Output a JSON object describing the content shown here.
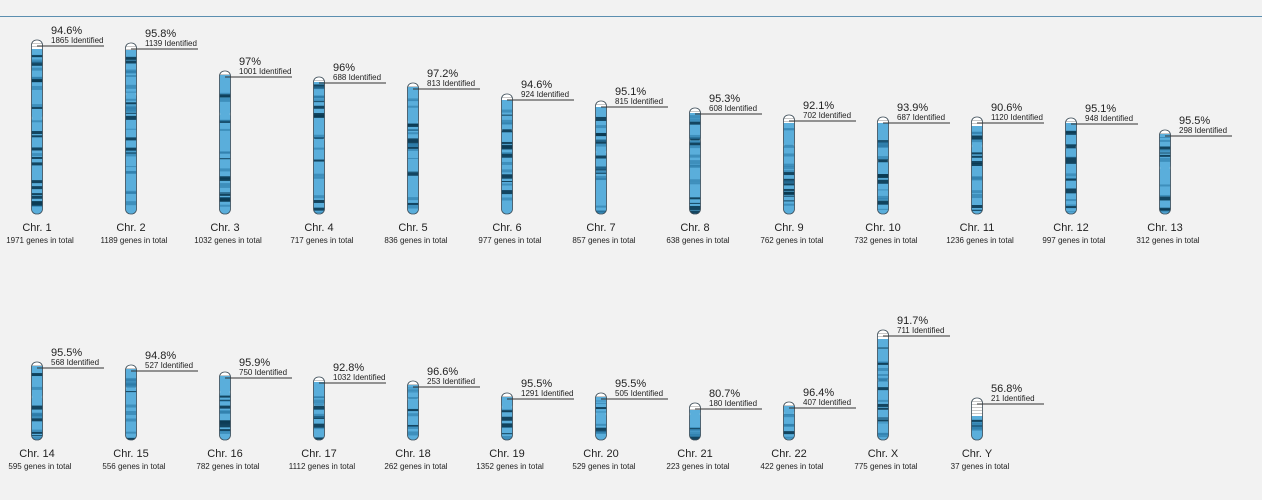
{
  "colors": {
    "identified_fill": "#5aaedb",
    "unidentified_fill": "#ffffff",
    "band_dark": "#0b3a52",
    "band_mid": "#2b7aa6",
    "outline": "#3a4a55",
    "background": "#f2f2f2"
  },
  "chart_data": {
    "type": "ideogram",
    "identified_label": "Identified",
    "total_label": "genes in total",
    "chromosomes": [
      {
        "name": "Chr. 1",
        "percent_label": "94.6%",
        "percent": 94.6,
        "identified": 1865,
        "total": 1971,
        "relative_length": 1.0
      },
      {
        "name": "Chr. 2",
        "percent_label": "95.8%",
        "percent": 95.8,
        "identified": 1139,
        "total": 1189,
        "relative_length": 0.98
      },
      {
        "name": "Chr. 3",
        "percent_label": "97%",
        "percent": 97.0,
        "identified": 1001,
        "total": 1032,
        "relative_length": 0.82
      },
      {
        "name": "Chr. 4",
        "percent_label": "96%",
        "percent": 96.0,
        "identified": 688,
        "total": 717,
        "relative_length": 0.79
      },
      {
        "name": "Chr. 5",
        "percent_label": "97.2%",
        "percent": 97.2,
        "identified": 813,
        "total": 836,
        "relative_length": 0.75
      },
      {
        "name": "Chr. 6",
        "percent_label": "94.6%",
        "percent": 94.6,
        "identified": 924,
        "total": 977,
        "relative_length": 0.69
      },
      {
        "name": "Chr. 7",
        "percent_label": "95.1%",
        "percent": 95.1,
        "identified": 815,
        "total": 857,
        "relative_length": 0.65
      },
      {
        "name": "Chr. 8",
        "percent_label": "95.3%",
        "percent": 95.3,
        "identified": 608,
        "total": 638,
        "relative_length": 0.61
      },
      {
        "name": "Chr. 9",
        "percent_label": "92.1%",
        "percent": 92.1,
        "identified": 702,
        "total": 762,
        "relative_length": 0.57
      },
      {
        "name": "Chr. 10",
        "percent_label": "93.9%",
        "percent": 93.9,
        "identified": 687,
        "total": 732,
        "relative_length": 0.56
      },
      {
        "name": "Chr. 11",
        "percent_label": "90.6%",
        "percent": 90.6,
        "identified": 1120,
        "total": 1236,
        "relative_length": 0.56
      },
      {
        "name": "Chr. 12",
        "percent_label": "95.1%",
        "percent": 95.1,
        "identified": 948,
        "total": 997,
        "relative_length": 0.55
      },
      {
        "name": "Chr. 13",
        "percent_label": "95.5%",
        "percent": 95.5,
        "identified": 298,
        "total": 312,
        "relative_length": 0.48
      },
      {
        "name": "Chr. 14",
        "percent_label": "95.5%",
        "percent": 95.5,
        "identified": 568,
        "total": 595,
        "relative_length": 0.45
      },
      {
        "name": "Chr. 15",
        "percent_label": "94.8%",
        "percent": 94.8,
        "identified": 527,
        "total": 556,
        "relative_length": 0.43
      },
      {
        "name": "Chr. 16",
        "percent_label": "95.9%",
        "percent": 95.9,
        "identified": 750,
        "total": 782,
        "relative_length": 0.39
      },
      {
        "name": "Chr. 17",
        "percent_label": "92.8%",
        "percent": 92.8,
        "identified": 1032,
        "total": 1112,
        "relative_length": 0.36
      },
      {
        "name": "Chr. 18",
        "percent_label": "96.6%",
        "percent": 96.6,
        "identified": 253,
        "total": 262,
        "relative_length": 0.34
      },
      {
        "name": "Chr. 19",
        "percent_label": "95.5%",
        "percent": 95.5,
        "identified": 1291,
        "total": 1352,
        "relative_length": 0.27
      },
      {
        "name": "Chr. 20",
        "percent_label": "95.5%",
        "percent": 95.5,
        "identified": 505,
        "total": 529,
        "relative_length": 0.27
      },
      {
        "name": "Chr. 21",
        "percent_label": "80.7%",
        "percent": 80.7,
        "identified": 180,
        "total": 223,
        "relative_length": 0.21
      },
      {
        "name": "Chr. 22",
        "percent_label": "96.4%",
        "percent": 96.4,
        "identified": 407,
        "total": 422,
        "relative_length": 0.22
      },
      {
        "name": "Chr. X",
        "percent_label": "91.7%",
        "percent": 91.7,
        "identified": 711,
        "total": 775,
        "relative_length": 0.63
      },
      {
        "name": "Chr. Y",
        "percent_label": "56.8%",
        "percent": 56.8,
        "identified": 21,
        "total": 37,
        "relative_length": 0.24
      }
    ]
  }
}
